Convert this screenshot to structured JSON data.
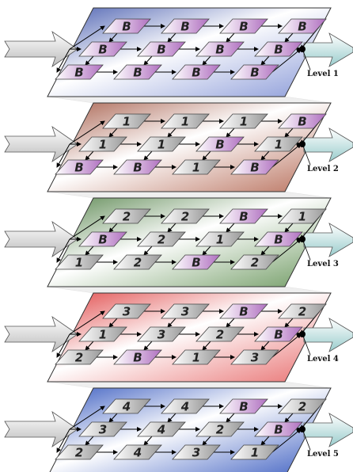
{
  "levels": [
    {
      "label": "Level 1",
      "cells": [
        [
          "B",
          "B",
          "B",
          "B"
        ],
        [
          "B",
          "B",
          "B",
          "B"
        ],
        [
          "B",
          "B",
          "B",
          "B"
        ]
      ]
    },
    {
      "label": "Level 2",
      "cells": [
        [
          "1",
          "1",
          "1",
          "B"
        ],
        [
          "1",
          "1",
          "B",
          "1"
        ],
        [
          "B",
          "B",
          "1",
          "B"
        ]
      ]
    },
    {
      "label": "Level 3",
      "cells": [
        [
          "2",
          "2",
          "B",
          "1"
        ],
        [
          "B",
          "2",
          "1",
          "B"
        ],
        [
          "1",
          "2",
          "B",
          "2"
        ]
      ]
    },
    {
      "label": "Level 4",
      "cells": [
        [
          "3",
          "3",
          "B",
          "2"
        ],
        [
          "1",
          "3",
          "2",
          "B"
        ],
        [
          "2",
          "B",
          "1",
          "3"
        ]
      ]
    },
    {
      "label": "Level 5",
      "cells": [
        [
          "4",
          "4",
          "B",
          "2"
        ],
        [
          "3",
          "4",
          "2",
          "B"
        ],
        [
          "2",
          "4",
          "3",
          "1"
        ]
      ]
    }
  ]
}
